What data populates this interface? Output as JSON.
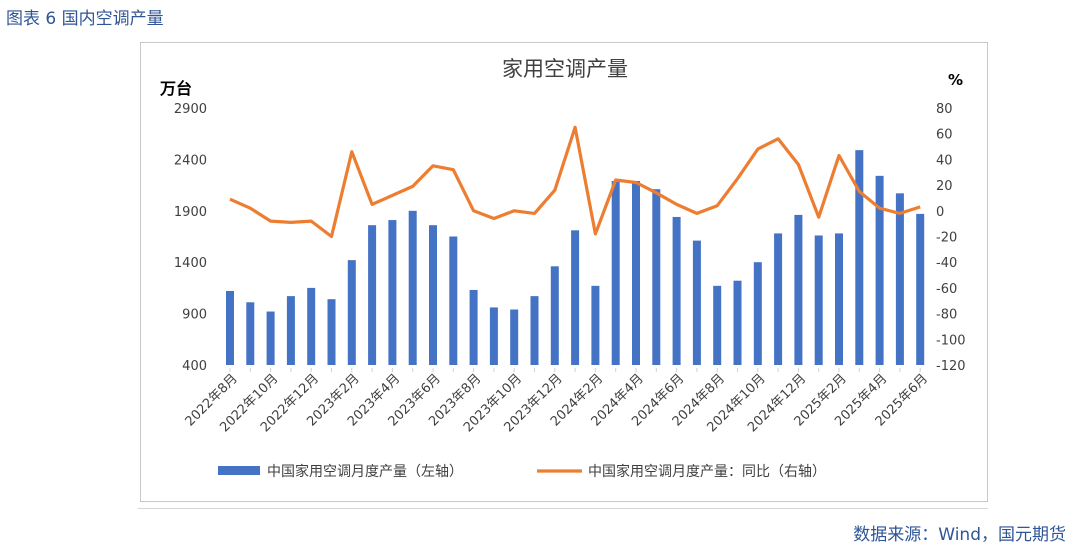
{
  "caption": "图表 6 国内空调产量",
  "source": "数据来源：Wind，国元期货",
  "colors": {
    "bar": "#4472c4",
    "line": "#ed7d31",
    "text_blue": "#2f5597",
    "axis_text": "#404040"
  },
  "chart_data": {
    "type": "bar",
    "title": "家用空调产量",
    "ylabel_left": "万台",
    "ylabel_right": "%",
    "ylim_left": [
      400,
      2900
    ],
    "yticks_left": [
      400,
      900,
      1400,
      1900,
      2400,
      2900
    ],
    "ylim_right": [
      -120,
      80
    ],
    "yticks_right": [
      -120,
      -100,
      -80,
      -60,
      -40,
      -20,
      0,
      20,
      40,
      60,
      80
    ],
    "grid": false,
    "legend_position": "bottom",
    "categories": [
      "2022年8月",
      "2022年9月",
      "2022年10月",
      "2022年11月",
      "2022年12月",
      "2023年1月",
      "2023年2月",
      "2023年3月",
      "2023年4月",
      "2023年5月",
      "2023年6月",
      "2023年7月",
      "2023年8月",
      "2023年9月",
      "2023年10月",
      "2023年11月",
      "2023年12月",
      "2024年1月",
      "2024年2月",
      "2024年3月",
      "2024年4月",
      "2024年5月",
      "2024年6月",
      "2024年7月",
      "2024年8月",
      "2024年9月",
      "2024年10月",
      "2024年11月",
      "2024年12月",
      "2025年1月",
      "2025年2月",
      "2025年3月",
      "2025年4月",
      "2025年5月",
      "2025年6月"
    ],
    "x_tick_labels": [
      "2022年8月",
      "2022年10月",
      "2022年12月",
      "2023年2月",
      "2023年4月",
      "2023年6月",
      "2023年8月",
      "2023年10月",
      "2023年12月",
      "2024年2月",
      "2024年4月",
      "2024年6月",
      "2024年8月",
      "2024年10月",
      "2024年12月",
      "2025年2月",
      "2025年4月",
      "2025年6月"
    ],
    "series": [
      {
        "name": "中国家用空调月度产量（左轴）",
        "type": "bar",
        "axis": "left",
        "values": [
          1120,
          1010,
          920,
          1070,
          1150,
          1040,
          1420,
          1760,
          1810,
          1900,
          1760,
          1650,
          1130,
          960,
          940,
          1070,
          1360,
          1710,
          1170,
          2190,
          2190,
          2110,
          1840,
          1610,
          1170,
          1220,
          1400,
          1680,
          1860,
          1660,
          1680,
          2490,
          2240,
          2070,
          1870
        ]
      },
      {
        "name": "中国家用空调月度产量：同比（右轴）",
        "type": "line",
        "axis": "right",
        "values": [
          9,
          2,
          -8,
          -9,
          -8,
          -20,
          46,
          5,
          12,
          19,
          35,
          32,
          0,
          -6,
          0,
          -2,
          16,
          65,
          -18,
          24,
          22,
          14,
          5,
          -2,
          4,
          25,
          48,
          56,
          36,
          -5,
          43,
          15,
          2,
          -2,
          3
        ]
      }
    ]
  }
}
